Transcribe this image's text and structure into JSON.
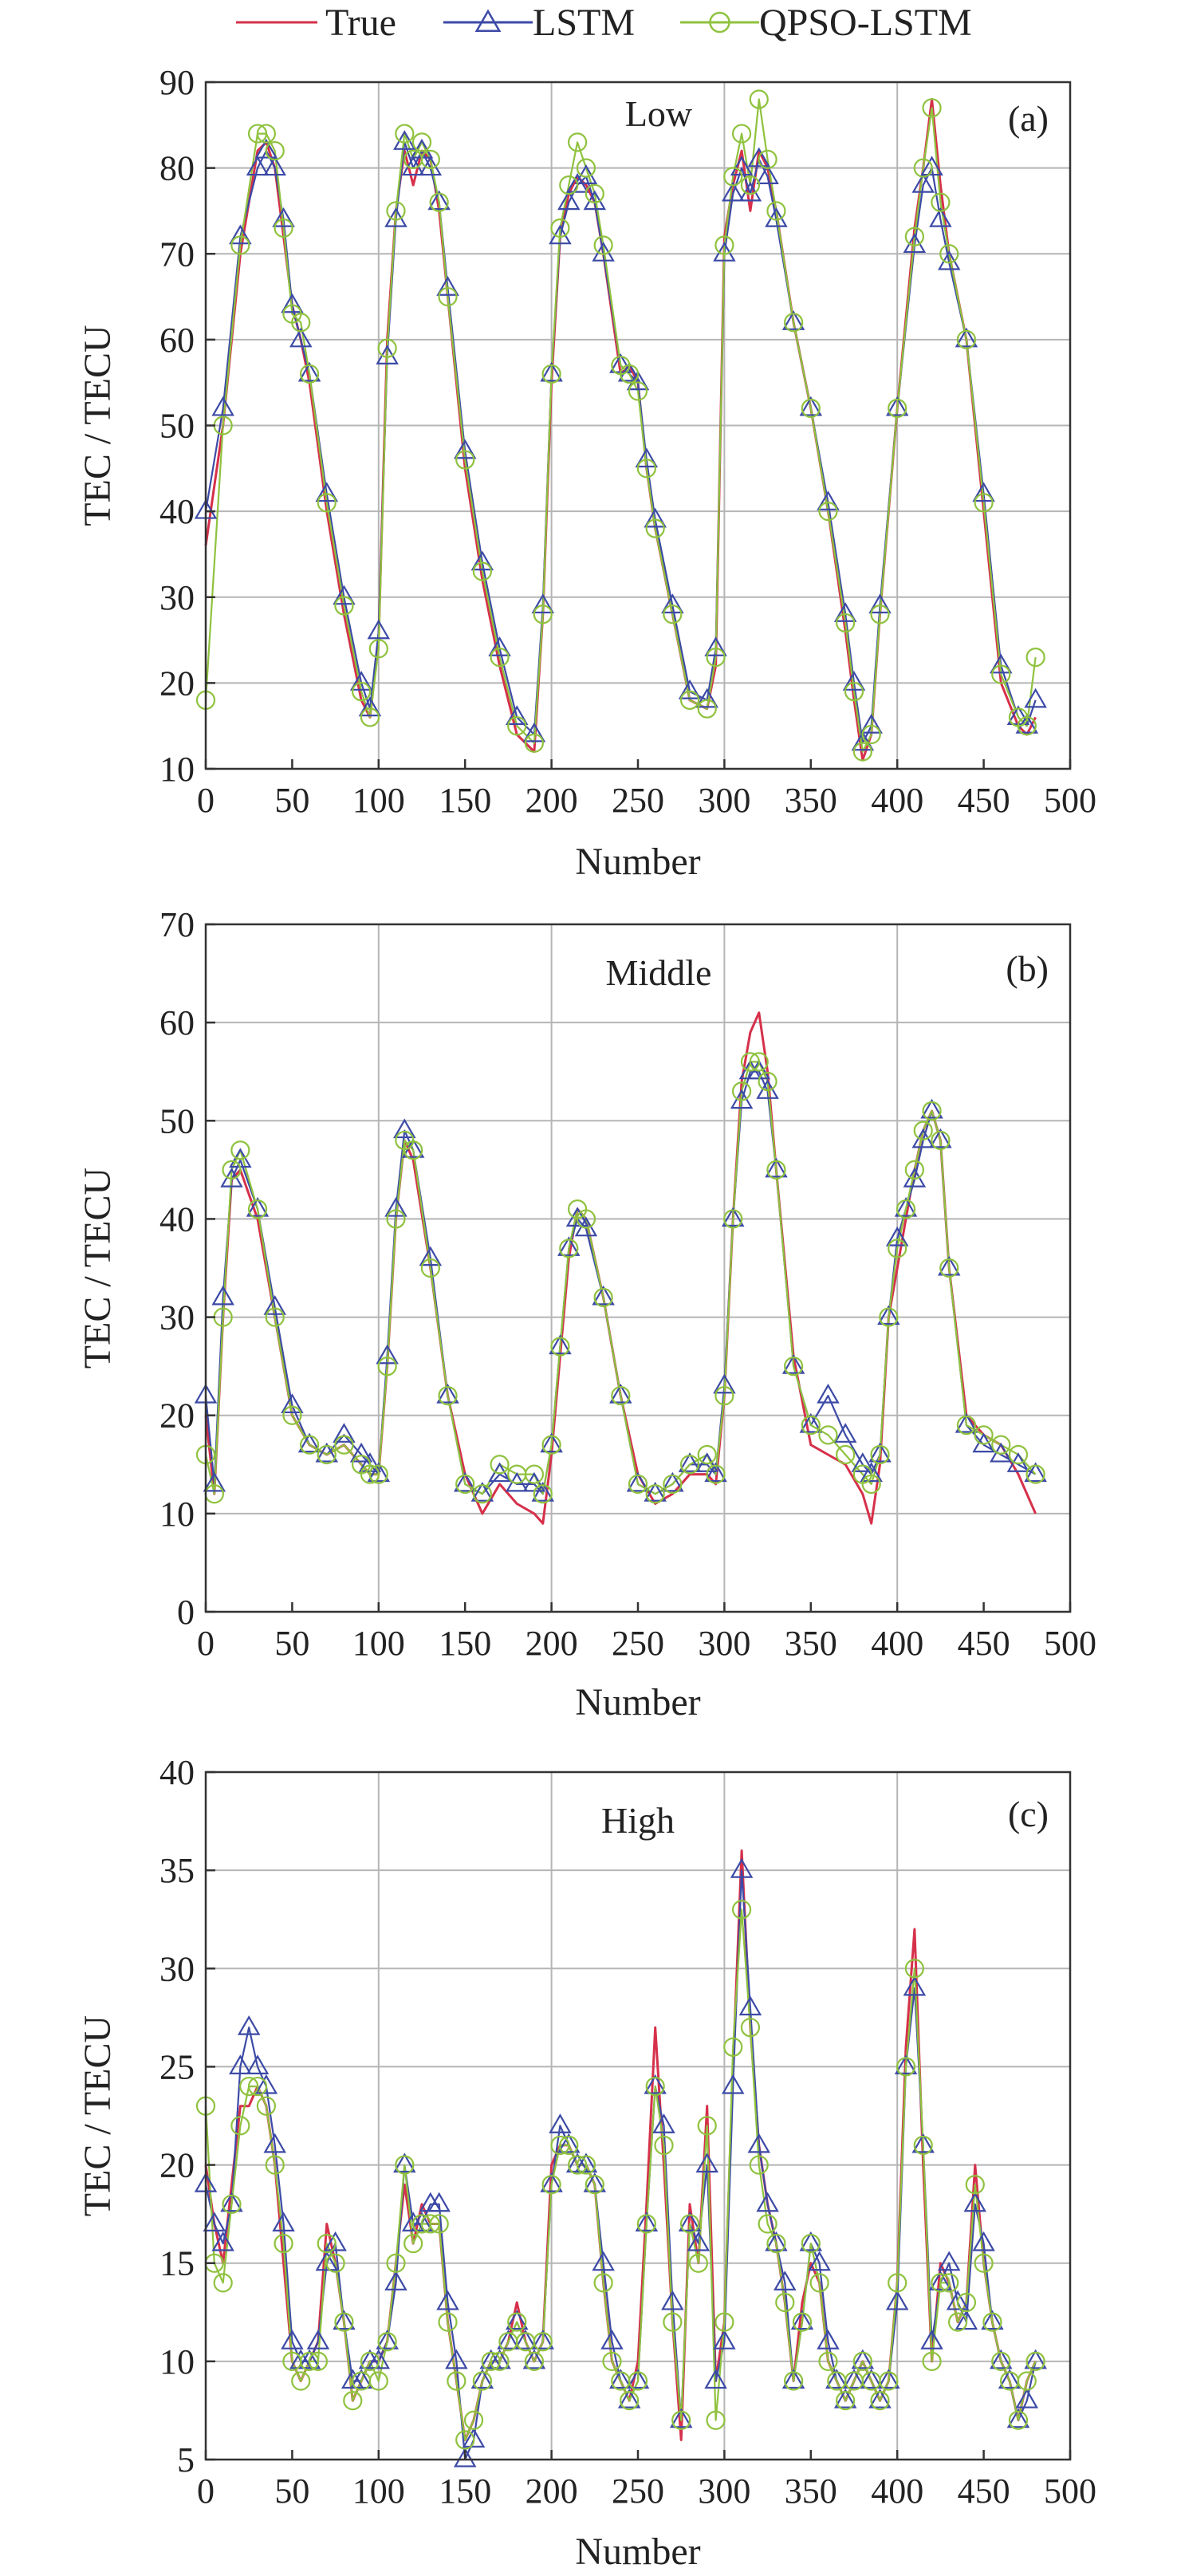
{
  "legend": [
    {
      "name": "True",
      "color": "#d6304a",
      "marker": "none"
    },
    {
      "name": "LSTM",
      "color": "#3c4aa6",
      "marker": "triangle"
    },
    {
      "name": "QPSO-LSTM",
      "color": "#8fc23e",
      "marker": "circle"
    }
  ],
  "chart_data": [
    {
      "type": "line",
      "panel_label": "(a)",
      "region_label": "Low",
      "xlabel": "Number",
      "ylabel": "TEC / TECU",
      "xlim": [
        0,
        500
      ],
      "ylim": [
        10,
        90
      ],
      "grid": true,
      "x_ticks": [
        0,
        50,
        100,
        150,
        200,
        250,
        300,
        350,
        400,
        450,
        500
      ],
      "y_ticks": [
        10,
        20,
        30,
        40,
        50,
        60,
        70,
        80,
        90
      ],
      "x": [
        0,
        10,
        20,
        30,
        35,
        40,
        45,
        50,
        55,
        60,
        70,
        80,
        90,
        95,
        100,
        105,
        110,
        115,
        120,
        125,
        130,
        135,
        140,
        150,
        160,
        170,
        180,
        190,
        195,
        200,
        205,
        210,
        215,
        220,
        225,
        230,
        240,
        245,
        250,
        255,
        260,
        270,
        280,
        290,
        295,
        300,
        305,
        310,
        315,
        320,
        325,
        330,
        340,
        350,
        360,
        370,
        375,
        380,
        385,
        390,
        400,
        410,
        415,
        420,
        425,
        430,
        440,
        450,
        460,
        470,
        475,
        480
      ],
      "series": [
        {
          "name": "True",
          "values": [
            36,
            50,
            70,
            82,
            83,
            80,
            72,
            64,
            60,
            55,
            40,
            28,
            18,
            16,
            25,
            60,
            75,
            82,
            78,
            82,
            81,
            75,
            65,
            45,
            32,
            22,
            14,
            12,
            28,
            55,
            72,
            77,
            79,
            78,
            76,
            70,
            56,
            57,
            55,
            45,
            38,
            28,
            18,
            17,
            22,
            72,
            78,
            82,
            75,
            82,
            80,
            75,
            62,
            52,
            40,
            26,
            18,
            11,
            14,
            28,
            52,
            73,
            80,
            88,
            78,
            70,
            60,
            40,
            20,
            15,
            14,
            16
          ]
        },
        {
          "name": "LSTM",
          "values": [
            40,
            52,
            72,
            80,
            82,
            80,
            74,
            64,
            60,
            56,
            42,
            30,
            20,
            17,
            26,
            58,
            74,
            83,
            80,
            82,
            80,
            76,
            66,
            47,
            34,
            24,
            16,
            14,
            29,
            56,
            72,
            76,
            78,
            79,
            76,
            70,
            57,
            56,
            55,
            46,
            39,
            29,
            19,
            18,
            24,
            70,
            77,
            80,
            77,
            81,
            79,
            74,
            62,
            52,
            41,
            28,
            20,
            13,
            15,
            29,
            52,
            71,
            78,
            80,
            74,
            69,
            60,
            42,
            22,
            16,
            15,
            18
          ]
        },
        {
          "name": "QPSO-LSTM",
          "values": [
            18,
            50,
            71,
            84,
            84,
            82,
            73,
            63,
            62,
            56,
            41,
            29,
            19,
            16,
            24,
            59,
            75,
            84,
            81,
            83,
            81,
            76,
            65,
            46,
            33,
            23,
            15,
            13,
            28,
            56,
            73,
            78,
            83,
            80,
            77,
            71,
            57,
            56,
            54,
            45,
            38,
            28,
            18,
            17,
            23,
            71,
            79,
            84,
            78,
            88,
            81,
            75,
            62,
            52,
            40,
            27,
            19,
            12,
            14,
            28,
            52,
            72,
            80,
            87,
            76,
            70,
            60,
            41,
            21,
            16,
            15,
            23
          ]
        }
      ]
    },
    {
      "type": "line",
      "panel_label": "(b)",
      "region_label": "Middle",
      "xlabel": "Number",
      "ylabel": "TEC / TECU",
      "xlim": [
        0,
        500
      ],
      "ylim": [
        0,
        70
      ],
      "grid": true,
      "x_ticks": [
        0,
        50,
        100,
        150,
        200,
        250,
        300,
        350,
        400,
        450,
        500
      ],
      "y_ticks": [
        0,
        10,
        20,
        30,
        40,
        50,
        60,
        70
      ],
      "x": [
        0,
        5,
        10,
        15,
        20,
        30,
        40,
        50,
        60,
        70,
        80,
        90,
        95,
        100,
        105,
        110,
        115,
        120,
        130,
        140,
        150,
        160,
        170,
        180,
        190,
        195,
        200,
        205,
        210,
        215,
        220,
        230,
        240,
        250,
        260,
        270,
        280,
        290,
        295,
        300,
        305,
        310,
        315,
        320,
        325,
        330,
        340,
        350,
        360,
        370,
        380,
        385,
        390,
        395,
        400,
        405,
        410,
        415,
        420,
        425,
        430,
        440,
        450,
        460,
        470,
        480
      ],
      "series": [
        {
          "name": "True",
          "values": [
            20,
            12,
            30,
            44,
            45,
            40,
            30,
            20,
            17,
            16,
            17,
            15,
            14,
            14,
            25,
            40,
            48,
            46,
            35,
            22,
            14,
            10,
            13,
            11,
            10,
            9,
            16,
            26,
            36,
            41,
            40,
            32,
            22,
            14,
            11,
            12,
            14,
            14,
            13,
            22,
            40,
            54,
            59,
            61,
            55,
            45,
            26,
            17,
            16,
            15,
            12,
            9,
            15,
            30,
            35,
            40,
            45,
            49,
            51,
            48,
            35,
            20,
            18,
            17,
            14,
            10
          ]
        },
        {
          "name": "LSTM",
          "values": [
            22,
            13,
            32,
            44,
            46,
            41,
            31,
            21,
            17,
            16,
            18,
            16,
            15,
            14,
            26,
            41,
            49,
            47,
            36,
            22,
            13,
            12,
            14,
            13,
            13,
            12,
            17,
            27,
            37,
            40,
            39,
            32,
            22,
            13,
            12,
            13,
            15,
            15,
            14,
            23,
            40,
            52,
            55,
            55,
            53,
            45,
            25,
            19,
            22,
            18,
            15,
            14,
            16,
            30,
            38,
            41,
            44,
            48,
            51,
            48,
            35,
            19,
            17,
            16,
            15,
            14
          ]
        },
        {
          "name": "QPSO-LSTM",
          "values": [
            16,
            12,
            30,
            45,
            47,
            41,
            30,
            20,
            17,
            16,
            17,
            15,
            14,
            14,
            25,
            40,
            48,
            47,
            35,
            22,
            13,
            12,
            15,
            14,
            14,
            12,
            17,
            27,
            37,
            41,
            40,
            32,
            22,
            13,
            12,
            13,
            15,
            16,
            14,
            22,
            40,
            53,
            56,
            56,
            54,
            45,
            25,
            19,
            18,
            16,
            14,
            13,
            16,
            30,
            37,
            41,
            45,
            49,
            51,
            48,
            35,
            19,
            18,
            17,
            16,
            14
          ]
        }
      ]
    },
    {
      "type": "line",
      "panel_label": "(c)",
      "region_label": "High",
      "xlabel": "Number",
      "ylabel": "TEC / TECU",
      "xlim": [
        0,
        500
      ],
      "ylim": [
        5,
        40
      ],
      "grid": true,
      "x_ticks": [
        0,
        50,
        100,
        150,
        200,
        250,
        300,
        350,
        400,
        450,
        500
      ],
      "y_ticks": [
        5,
        10,
        15,
        20,
        25,
        30,
        35,
        40
      ],
      "x": [
        0,
        5,
        10,
        15,
        20,
        25,
        30,
        35,
        40,
        45,
        50,
        55,
        60,
        65,
        70,
        75,
        80,
        85,
        90,
        95,
        100,
        105,
        110,
        115,
        120,
        125,
        130,
        135,
        140,
        145,
        150,
        155,
        160,
        165,
        170,
        175,
        180,
        185,
        190,
        195,
        200,
        205,
        210,
        215,
        220,
        225,
        230,
        235,
        240,
        245,
        250,
        255,
        260,
        265,
        270,
        275,
        280,
        285,
        290,
        295,
        300,
        305,
        310,
        315,
        320,
        325,
        330,
        335,
        340,
        345,
        350,
        355,
        360,
        365,
        370,
        375,
        380,
        385,
        390,
        395,
        400,
        405,
        410,
        415,
        420,
        425,
        430,
        435,
        440,
        445,
        450,
        455,
        460,
        465,
        470,
        475,
        480
      ],
      "series": [
        {
          "name": "True",
          "values": [
            20,
            17,
            15,
            19,
            23,
            23,
            24,
            23,
            20,
            15,
            10,
            9,
            10,
            11,
            17,
            15,
            12,
            8,
            9,
            10,
            10,
            11,
            15,
            19,
            16,
            18,
            17,
            17,
            12,
            9,
            6,
            7,
            9,
            10,
            10,
            11,
            13,
            11,
            10,
            11,
            20,
            21,
            21,
            20,
            20,
            19,
            14,
            10,
            9,
            8,
            10,
            18,
            27,
            20,
            12,
            6,
            18,
            15,
            23,
            9,
            12,
            25,
            36,
            27,
            21,
            18,
            16,
            13,
            9,
            13,
            15,
            14,
            10,
            9,
            8,
            9,
            10,
            9,
            8,
            9,
            14,
            26,
            32,
            20,
            10,
            15,
            14,
            12,
            13,
            20,
            15,
            12,
            10,
            9,
            7,
            9,
            10
          ]
        },
        {
          "name": "LSTM",
          "values": [
            19,
            17,
            16,
            18,
            25,
            27,
            25,
            24,
            21,
            17,
            11,
            10,
            10,
            11,
            15,
            16,
            12,
            9,
            9,
            10,
            10,
            11,
            14,
            20,
            17,
            17,
            18,
            18,
            13,
            10,
            5,
            6,
            9,
            10,
            10,
            11,
            12,
            11,
            10,
            11,
            19,
            22,
            21,
            20,
            20,
            19,
            15,
            11,
            9,
            8,
            9,
            17,
            24,
            22,
            13,
            7,
            17,
            16,
            20,
            9,
            11,
            24,
            35,
            28,
            21,
            18,
            16,
            14,
            9,
            12,
            16,
            15,
            11,
            9,
            8,
            9,
            10,
            9,
            8,
            9,
            13,
            25,
            29,
            21,
            11,
            14,
            15,
            13,
            12,
            18,
            16,
            12,
            10,
            9,
            7,
            8,
            10
          ]
        },
        {
          "name": "QPSO-LSTM",
          "values": [
            23,
            15,
            14,
            18,
            22,
            24,
            24,
            23,
            20,
            16,
            10,
            9,
            10,
            10,
            16,
            15,
            12,
            8,
            9,
            10,
            9,
            11,
            15,
            20,
            16,
            17,
            17,
            17,
            12,
            9,
            6,
            7,
            9,
            10,
            10,
            11,
            12,
            11,
            10,
            11,
            19,
            21,
            21,
            20,
            20,
            19,
            14,
            10,
            9,
            8,
            9,
            17,
            24,
            21,
            12,
            7,
            17,
            15,
            22,
            7,
            12,
            26,
            33,
            27,
            20,
            17,
            16,
            13,
            9,
            12,
            16,
            14,
            10,
            9,
            8,
            9,
            10,
            9,
            8,
            9,
            14,
            25,
            30,
            21,
            10,
            14,
            14,
            12,
            13,
            19,
            15,
            12,
            10,
            9,
            7,
            9,
            10
          ]
        }
      ]
    }
  ]
}
